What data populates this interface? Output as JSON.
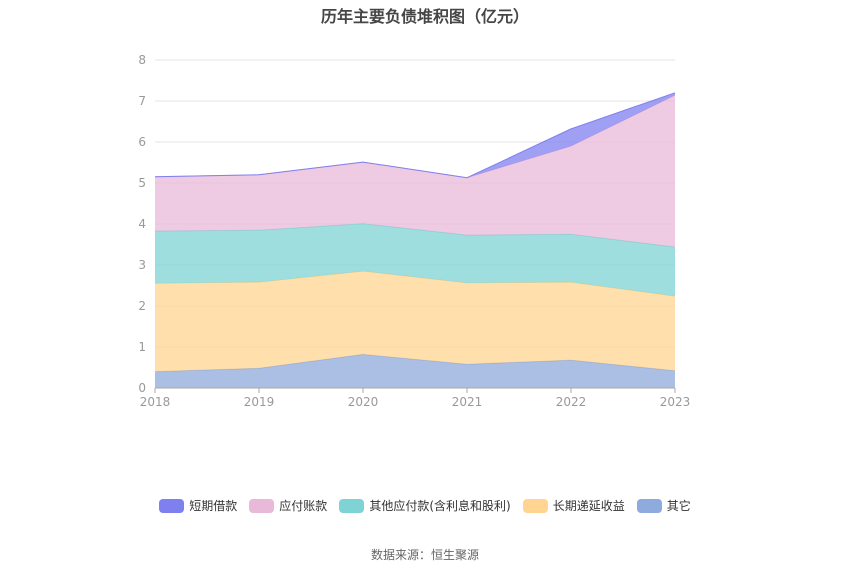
{
  "title": "历年主要负债堆积图（亿元）",
  "source": "数据来源：恒生聚源",
  "colors": {
    "grid": "#e6e6e6",
    "axis": "#aaaaaa",
    "tick_text": "#999999"
  },
  "chart_data": {
    "type": "area",
    "stacked": true,
    "title": "历年主要负债堆积图（亿元）",
    "categories": [
      "2018",
      "2019",
      "2020",
      "2021",
      "2022",
      "2023"
    ],
    "ylim": [
      0,
      8
    ],
    "yticks": [
      "0",
      "1",
      "2",
      "3",
      "4",
      "5",
      "6",
      "7",
      "8"
    ],
    "legend_position": "bottom",
    "grid": true,
    "series": [
      {
        "name": "其它",
        "color": "#8faadc",
        "values": [
          0.4,
          0.48,
          0.82,
          0.58,
          0.68,
          0.42
        ]
      },
      {
        "name": "长期递延收益",
        "color": "#ffd591",
        "values": [
          2.15,
          2.1,
          2.03,
          1.98,
          1.9,
          1.82
        ]
      },
      {
        "name": "其他应付款(含利息和股利)",
        "color": "#7ed3d4",
        "values": [
          1.28,
          1.27,
          1.16,
          1.17,
          1.17,
          1.2
        ]
      },
      {
        "name": "应付账款",
        "color": "#e8b9d8",
        "values": [
          1.32,
          1.35,
          1.5,
          1.4,
          2.15,
          3.7
        ]
      },
      {
        "name": "短期借款",
        "color": "#7f80f0",
        "values": [
          0,
          0,
          0,
          0,
          0.42,
          0.06
        ]
      }
    ]
  }
}
